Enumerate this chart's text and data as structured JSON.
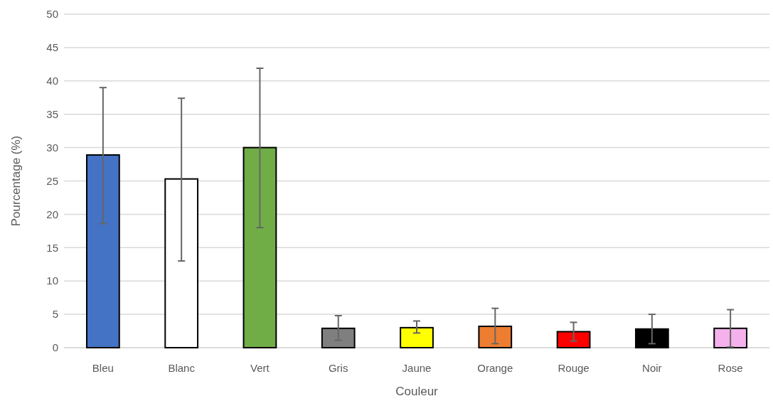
{
  "chart_data": {
    "type": "bar",
    "xlabel": "Couleur",
    "ylabel": "Pourcentage (%)",
    "categories": [
      "Bleu",
      "Blanc",
      "Vert",
      "Gris",
      "Jaune",
      "Orange",
      "Rouge",
      "Noir",
      "Rose"
    ],
    "values": [
      28.9,
      25.3,
      30.0,
      2.9,
      3.0,
      3.2,
      2.4,
      2.8,
      2.9
    ],
    "colors": [
      "#4472c4",
      "#ffffff",
      "#70ad47",
      "#7f7f7f",
      "#ffff00",
      "#ed7d31",
      "#ff0000",
      "#000000",
      "#f4b1ec"
    ],
    "errors": [
      [
        18.6,
        39.0
      ],
      [
        13.0,
        37.4
      ],
      [
        18.0,
        41.9
      ],
      [
        1.1,
        4.8
      ],
      [
        2.2,
        4.0
      ],
      [
        0.6,
        5.9
      ],
      [
        1.0,
        3.8
      ],
      [
        0.6,
        5.0
      ],
      [
        0.1,
        5.7
      ]
    ],
    "ylim": [
      0,
      50
    ],
    "yticks": [
      0,
      5,
      10,
      15,
      20,
      25,
      30,
      35,
      40,
      45,
      50
    ],
    "grid": "y"
  }
}
